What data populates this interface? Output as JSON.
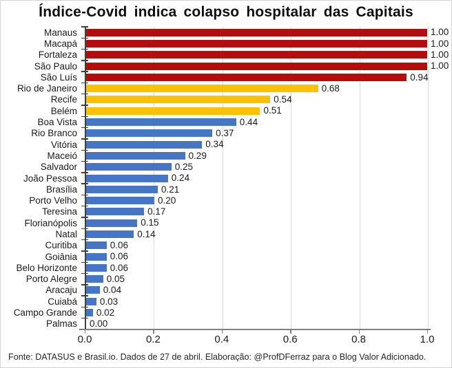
{
  "title": "Índice-Covid indica colapso hospitalar das Capitais",
  "footer": {
    "source_note": "Fonte: DATASUS e Brasil.io. Dados de 27 de abril. Elaboração: @ProfDFerraz para o Blog Valor Adicionado."
  },
  "chart_data": {
    "type": "bar",
    "orientation": "horizontal",
    "title": "Índice-Covid indica colapso hospitalar das Capitais",
    "categories": [
      "Manaus",
      "Macapá",
      "Fortaleza",
      "São Paulo",
      "São Luís",
      "Rio de Janeiro",
      "Recife",
      "Belém",
      "Boa Vista",
      "Rio Branco",
      "Vitória",
      "Maceió",
      "Salvador",
      "João Pessoa",
      "Brasília",
      "Porto Velho",
      "Teresina",
      "Florianópolis",
      "Natal",
      "Curitiba",
      "Goiânia",
      "Belo Horizonte",
      "Porto Alegre",
      "Aracaju",
      "Cuiabá",
      "Campo Grande",
      "Palmas"
    ],
    "values": [
      1.0,
      1.0,
      1.0,
      1.0,
      0.94,
      0.68,
      0.54,
      0.51,
      0.44,
      0.37,
      0.34,
      0.29,
      0.25,
      0.24,
      0.21,
      0.2,
      0.17,
      0.15,
      0.14,
      0.06,
      0.06,
      0.06,
      0.05,
      0.04,
      0.03,
      0.02,
      0.0
    ],
    "value_label_decimals": 2,
    "bar_color_keys": [
      "critical",
      "critical",
      "critical",
      "critical",
      "critical",
      "warning",
      "warning",
      "warning",
      "normal",
      "normal",
      "normal",
      "normal",
      "normal",
      "normal",
      "normal",
      "normal",
      "normal",
      "normal",
      "normal",
      "normal",
      "normal",
      "normal",
      "normal",
      "normal",
      "normal",
      "normal",
      "normal"
    ],
    "palette": {
      "critical": "#b50d0d",
      "warning": "#ffc004",
      "normal": "#4674c6"
    },
    "xlim": [
      0,
      1
    ],
    "x_ticks": [
      "0.0",
      "0.2",
      "0.4",
      "0.6",
      "0.8",
      "1.0"
    ],
    "grid": "vertical-light-gray",
    "gridline_color": "#d9d9d9",
    "axis_color": "#7f7f7f"
  }
}
